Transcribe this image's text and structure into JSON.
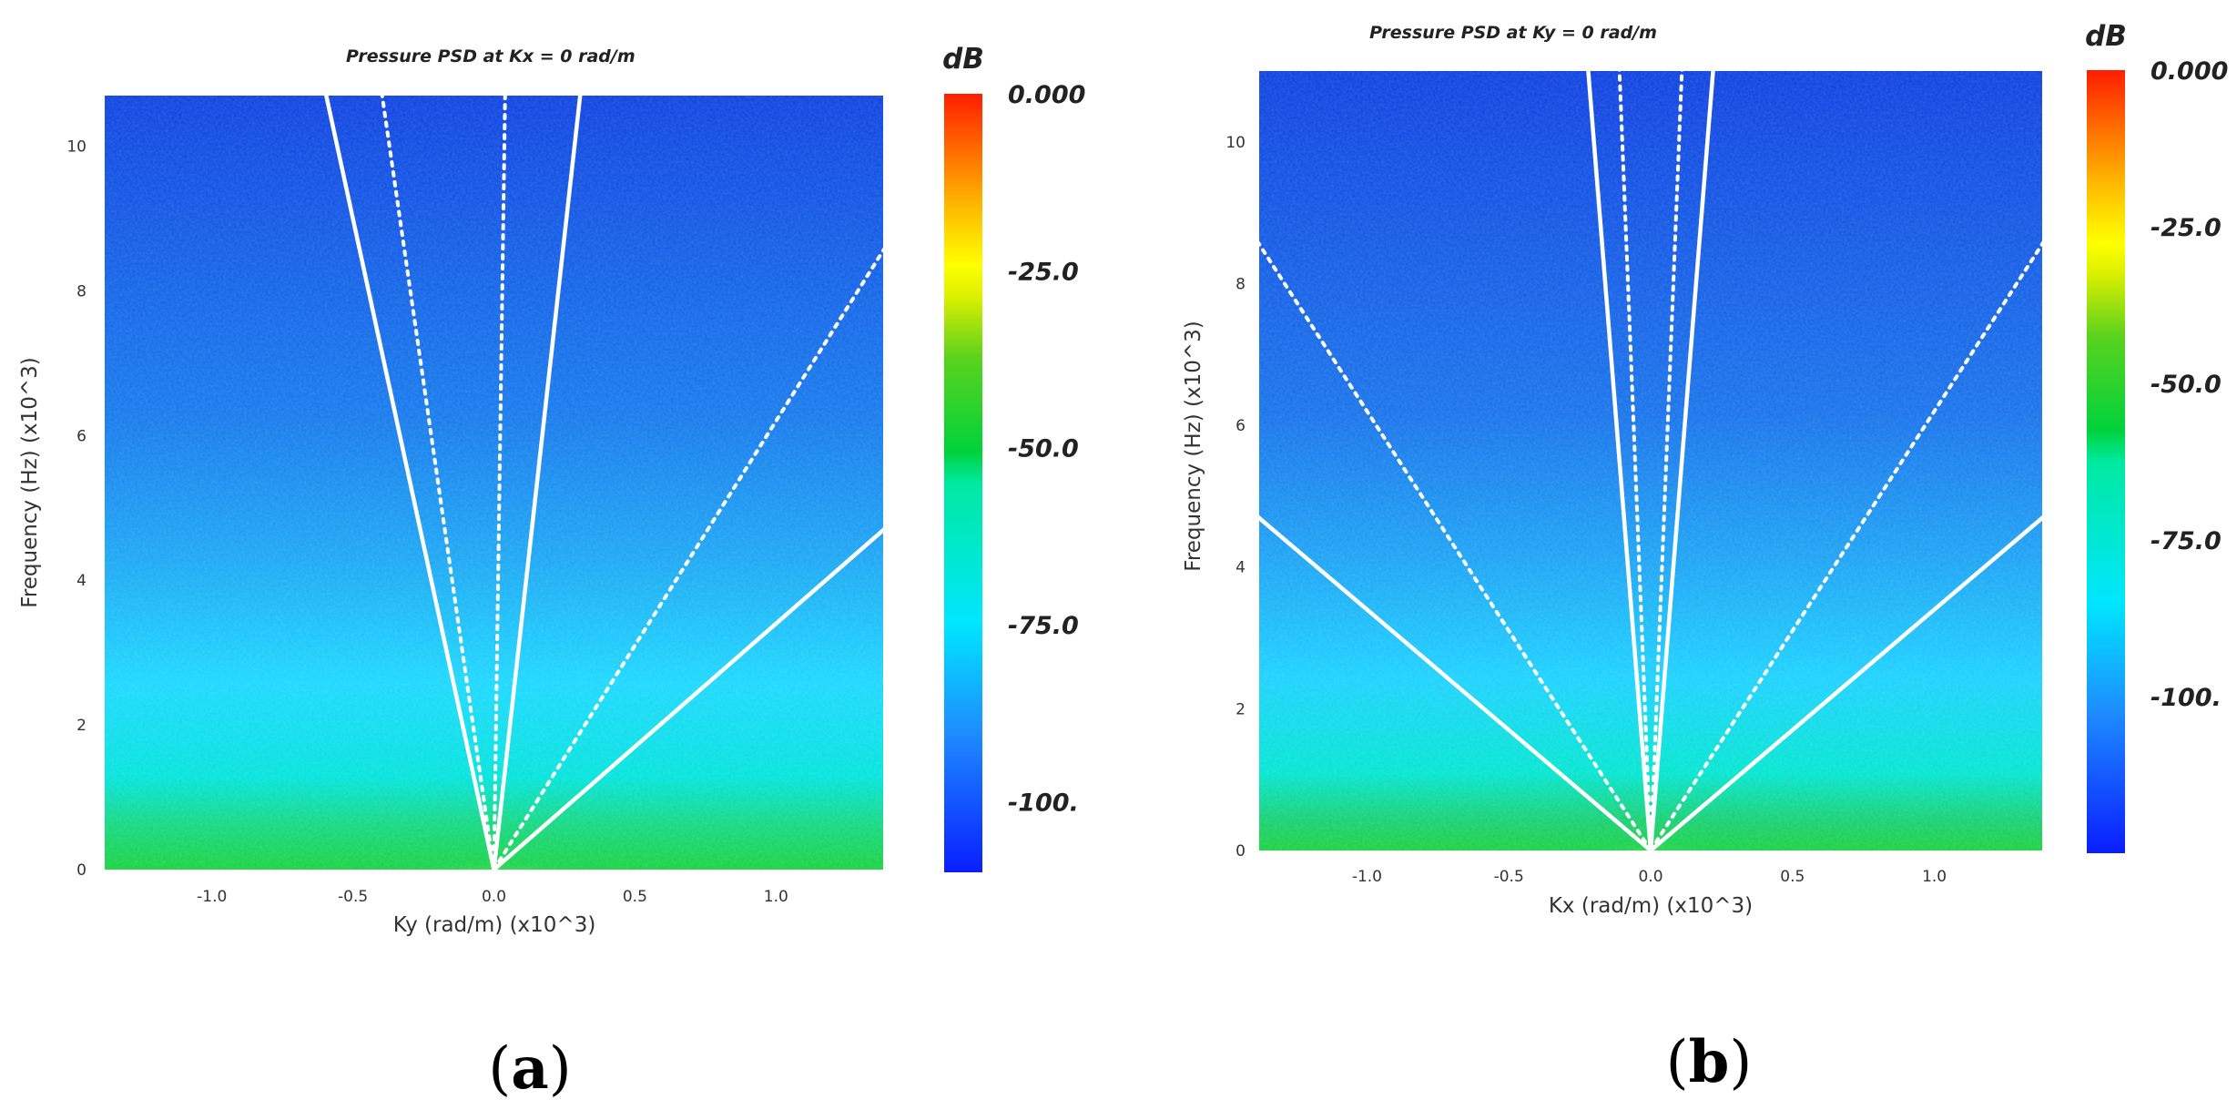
{
  "chart_data": [
    {
      "type": "heatmap",
      "panel_label": "a",
      "caption_open": "(",
      "caption_letter": "a",
      "caption_close": ")",
      "title": "Pressure PSD at Kx = 0 rad/m",
      "xlabel": "Ky (rad/m) (x10^3)",
      "ylabel": "Frequency (Hz) (x10^3)",
      "xlim": [
        -1.38,
        1.38
      ],
      "ylim": [
        0,
        10.7
      ],
      "x_ticks": [
        {
          "value": -1.0,
          "label": "-1.0"
        },
        {
          "value": -0.5,
          "label": "-0.5"
        },
        {
          "value": 0.0,
          "label": "0.0"
        },
        {
          "value": 0.5,
          "label": "0.5"
        },
        {
          "value": 1.0,
          "label": "1.0"
        }
      ],
      "y_ticks": [
        {
          "value": 0,
          "label": "0"
        },
        {
          "value": 2,
          "label": "2"
        },
        {
          "value": 4,
          "label": "4"
        },
        {
          "value": 6,
          "label": "6"
        },
        {
          "value": 8,
          "label": "8"
        },
        {
          "value": 10,
          "label": "10"
        }
      ],
      "colorbar": {
        "unit": "dB",
        "range": [
          -110,
          0
        ],
        "tick_labels": [
          {
            "value": 0,
            "label": "0.000"
          },
          {
            "value": -25,
            "label": "-25.0"
          },
          {
            "value": -50,
            "label": "-50.0"
          },
          {
            "value": -75,
            "label": "-75.0"
          },
          {
            "value": -100,
            "label": "-100."
          }
        ]
      },
      "overlay_lines": [
        {
          "style": "solid",
          "slope": 35.0
        },
        {
          "style": "solid",
          "slope": -18.0
        },
        {
          "style": "dotted",
          "slope": 270.0
        },
        {
          "style": "dotted",
          "slope": -27.0
        },
        {
          "style": "solid",
          "slope": 3.4
        },
        {
          "style": "dotted",
          "slope": 6.2
        }
      ]
    },
    {
      "type": "heatmap",
      "panel_label": "b",
      "caption_open": "(",
      "caption_letter": "b",
      "caption_close": ")",
      "title": "Pressure PSD at Ky = 0 rad/m",
      "xlabel": "Kx (rad/m) (x10^3)",
      "ylabel": "Frequency (Hz) (x10^3)",
      "xlim": [
        -1.38,
        1.38
      ],
      "ylim": [
        0,
        11.0
      ],
      "x_ticks": [
        {
          "value": -1.0,
          "label": "-1.0"
        },
        {
          "value": -0.5,
          "label": "-0.5"
        },
        {
          "value": 0.0,
          "label": "0.0"
        },
        {
          "value": 0.5,
          "label": "0.5"
        },
        {
          "value": 1.0,
          "label": "1.0"
        }
      ],
      "y_ticks": [
        {
          "value": 0,
          "label": "0"
        },
        {
          "value": 2,
          "label": "2"
        },
        {
          "value": 4,
          "label": "4"
        },
        {
          "value": 6,
          "label": "6"
        },
        {
          "value": 8,
          "label": "8"
        },
        {
          "value": 10,
          "label": "10"
        }
      ],
      "colorbar": {
        "unit": "dB",
        "range": [
          -125,
          0
        ],
        "tick_labels": [
          {
            "value": 0,
            "label": "0.000"
          },
          {
            "value": -25,
            "label": "-25.0"
          },
          {
            "value": -50,
            "label": "-50.0"
          },
          {
            "value": -75,
            "label": "-75.0"
          },
          {
            "value": -100,
            "label": "-100."
          }
        ]
      },
      "overlay_lines": [
        {
          "style": "solid",
          "slope": -50.0
        },
        {
          "style": "solid",
          "slope": 50.0
        },
        {
          "style": "dotted",
          "slope": -100.0
        },
        {
          "style": "dotted",
          "slope": 100.0
        },
        {
          "style": "solid",
          "slope": -3.4
        },
        {
          "style": "solid",
          "slope": 3.4
        },
        {
          "style": "dotted",
          "slope": -6.2
        },
        {
          "style": "dotted",
          "slope": 6.2
        }
      ]
    }
  ]
}
